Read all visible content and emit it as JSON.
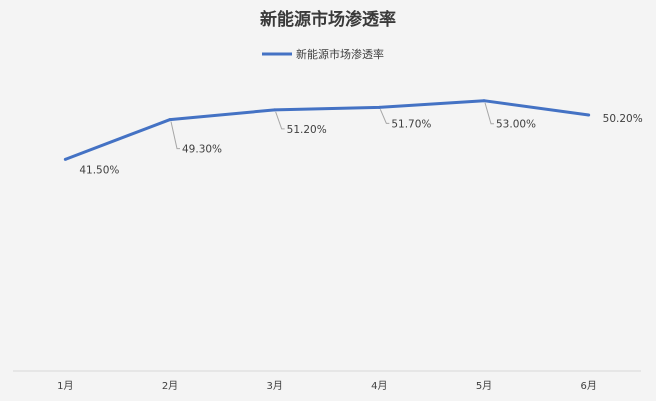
{
  "chart_data": {
    "type": "line",
    "title": "新能源市场渗透率",
    "categories": [
      "1月",
      "2月",
      "3月",
      "4月",
      "5月",
      "6月"
    ],
    "series": [
      {
        "name": "新能源市场渗透率",
        "values": [
          41.5,
          49.3,
          51.2,
          51.7,
          53.0,
          50.2
        ],
        "labels": [
          "41.50%",
          "49.30%",
          "51.20%",
          "51.70%",
          "53.00%",
          "50.20%"
        ]
      }
    ],
    "xlabel": "",
    "ylabel": "",
    "ylim": [
      0,
      60
    ],
    "grid": false,
    "legend": "top-center",
    "colors": {
      "line": "#4472c4",
      "background": "#f4f4f4",
      "axis": "#d9d9d9",
      "leader": "#a6a6a6"
    }
  }
}
